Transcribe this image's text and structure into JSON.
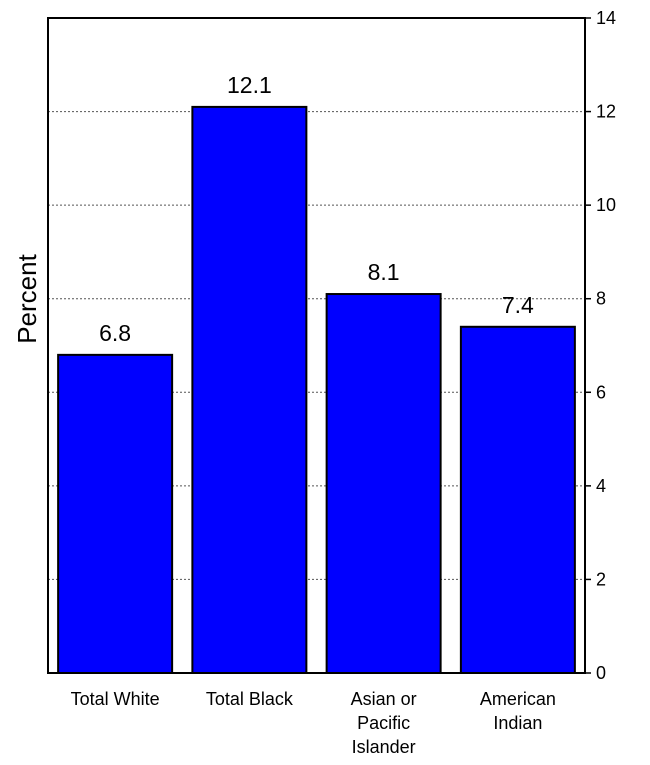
{
  "chart_data": {
    "type": "bar",
    "title": "",
    "xlabel": "",
    "ylabel": "Percent",
    "ylim": [
      0,
      14
    ],
    "yticks": [
      0,
      2,
      4,
      6,
      8,
      10,
      12,
      14
    ],
    "y_axis_side": "right",
    "grid": "horizontal dotted",
    "bar_color": "#0000ff",
    "categories": [
      [
        "Total White"
      ],
      [
        "Total Black"
      ],
      [
        "Asian or",
        "Pacific",
        "Islander"
      ],
      [
        "American",
        "Indian"
      ]
    ],
    "values": [
      6.8,
      12.1,
      8.1,
      7.4
    ],
    "data_labels": [
      "6.8",
      "12.1",
      "8.1",
      "7.4"
    ]
  }
}
